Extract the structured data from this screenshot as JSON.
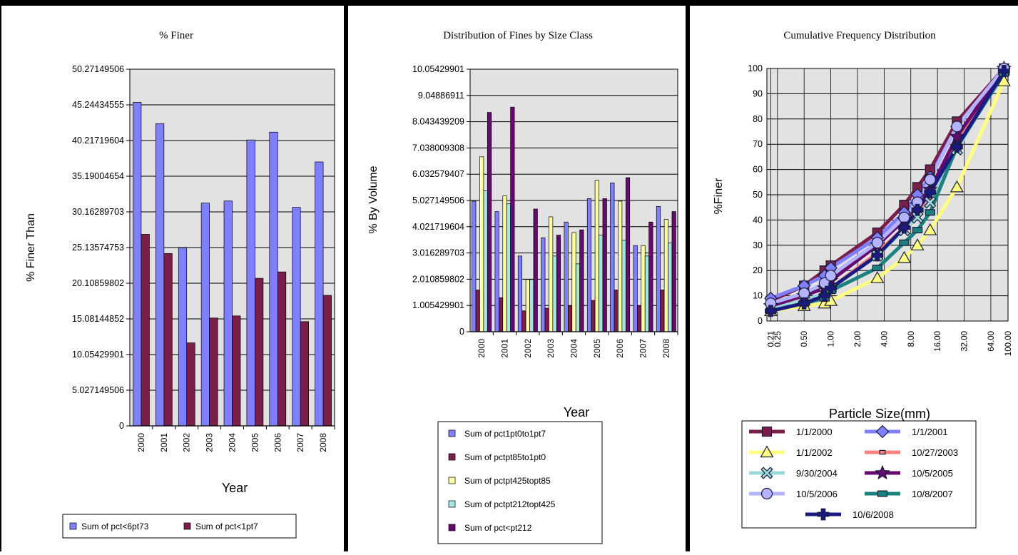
{
  "colors": {
    "blue": "#8080ff",
    "maroon": "#7a1f4a",
    "lightyellow": "#ffffa6",
    "lightcyan": "#a6e6e0",
    "purple": "#650a6e",
    "plotbg": "#e2e2e2"
  },
  "chart_data": [
    {
      "type": "bar",
      "title": "% Finer",
      "xlabel": "Year",
      "ylabel": "% Finer Than",
      "categories": [
        "2000",
        "2001",
        "2002",
        "2003",
        "2004",
        "2005",
        "2006",
        "2007",
        "2008"
      ],
      "ylim": [
        0,
        50.27149506
      ],
      "yticks": [
        "0",
        "5.027149506",
        "10.05429901",
        "15.08144852",
        "20.10859802",
        "25.13574753",
        "30.16289703",
        "35.19004654",
        "40.21719604",
        "45.24434555",
        "50.27149506"
      ],
      "series": [
        {
          "name": "Sum of pct<6pt73",
          "color": "#8080ff",
          "values": [
            45.6,
            42.6,
            25.1,
            31.4,
            31.7,
            40.3,
            41.4,
            30.8,
            37.2
          ]
        },
        {
          "name": "Sum of pct<1pt7",
          "color": "#7a1f4a",
          "values": [
            27.0,
            24.3,
            11.7,
            15.2,
            15.5,
            20.8,
            21.7,
            14.7,
            18.4
          ]
        }
      ],
      "legend": "bottom",
      "grid": true
    },
    {
      "type": "bar",
      "title": "Distribution of Fines by Size Class",
      "xlabel": "Year",
      "ylabel": "% By Volume",
      "categories": [
        "2000",
        "2001",
        "2002",
        "2003",
        "2004",
        "2005",
        "2006",
        "2007",
        "2008"
      ],
      "ylim": [
        0,
        10.05429901
      ],
      "yticks": [
        "0",
        "1.005429901",
        "2.010859802",
        "3.016289703",
        "4.021719604",
        "5.027149506",
        "6.032579407",
        "7.038009308",
        "8.043439209",
        "9.04886911",
        "10.05429901"
      ],
      "series": [
        {
          "name": "Sum of pct1pt0to1pt7",
          "color": "#8080ff",
          "values": [
            5.0,
            4.6,
            2.9,
            3.6,
            4.2,
            5.1,
            5.7,
            3.3,
            4.8
          ]
        },
        {
          "name": "Sum of pctpt85to1pt0",
          "color": "#7a1f4a",
          "values": [
            1.6,
            1.3,
            0.8,
            0.9,
            1.0,
            1.2,
            1.6,
            1.0,
            1.6
          ]
        },
        {
          "name": "Sum of pctpt425topt85",
          "color": "#ffffa6",
          "values": [
            6.7,
            5.2,
            2.0,
            4.4,
            3.8,
            5.8,
            5.0,
            3.3,
            4.3
          ]
        },
        {
          "name": "Sum of pctpt212topt425",
          "color": "#a6e6e0",
          "values": [
            5.4,
            4.9,
            2.0,
            2.9,
            2.6,
            3.7,
            3.5,
            2.9,
            3.4
          ]
        },
        {
          "name": "Sum of pct<pt212",
          "color": "#650a6e",
          "values": [
            8.4,
            8.6,
            4.7,
            3.7,
            3.9,
            5.1,
            5.9,
            4.2,
            4.6
          ]
        }
      ],
      "legend": "bottom",
      "grid": true
    },
    {
      "type": "line",
      "title": "Cumulative Frequency Distribution",
      "xlabel": "Particle Size(mm)",
      "ylabel": "%Finer",
      "xscale": "log",
      "xticks": [
        "0.21",
        "0.25",
        "0.50",
        "1.00",
        "2.00",
        "4.00",
        "8.00",
        "16.00",
        "32.00",
        "64.00",
        "100.00"
      ],
      "x": [
        0.21,
        0.5,
        0.85,
        1.0,
        3.35,
        6.73,
        9.5,
        13.2,
        26.5,
        90.0
      ],
      "ylim": [
        0,
        100
      ],
      "yticks": [
        "0",
        "10",
        "20",
        "30",
        "40",
        "50",
        "60",
        "70",
        "80",
        "90",
        "100"
      ],
      "series": [
        {
          "name": "1/1/2000",
          "color": "#7a1f4a",
          "marker": "square",
          "values": [
            8,
            14,
            20,
            22,
            35,
            46,
            53,
            60,
            79,
            100
          ]
        },
        {
          "name": "1/1/2001",
          "color": "#8080ff",
          "marker": "diamond",
          "values": [
            9,
            14,
            18,
            21,
            33,
            43,
            50,
            57,
            77,
            100
          ]
        },
        {
          "name": "1/1/2002",
          "color": "#ffff80",
          "marker": "triangle",
          "values": [
            4,
            6,
            7,
            8,
            17,
            25,
            30,
            36,
            53,
            95
          ]
        },
        {
          "name": "10/27/2003",
          "color": "#ff8080",
          "marker": "small-square",
          "values": [
            5,
            8,
            10,
            13,
            27,
            37,
            42,
            48,
            70,
            100
          ]
        },
        {
          "name": "9/30/2004",
          "color": "#9ad9d9",
          "marker": "x",
          "values": [
            5,
            8,
            11,
            13,
            26,
            36,
            41,
            47,
            68,
            99
          ]
        },
        {
          "name": "10/5/2005",
          "color": "#650a6e",
          "marker": "star",
          "values": [
            6,
            10,
            13,
            16,
            30,
            40,
            46,
            52,
            73,
            100
          ]
        },
        {
          "name": "10/5/2006",
          "color": "#b3b3ff",
          "marker": "circle",
          "values": [
            7,
            11,
            15,
            18,
            31,
            41,
            47,
            56,
            77,
            100
          ]
        },
        {
          "name": "10/8/2007",
          "color": "#1a8080",
          "marker": "rect",
          "values": [
            4,
            7,
            9,
            12,
            21,
            31,
            36,
            43,
            69,
            98
          ]
        },
        {
          "name": "10/6/2008",
          "color": "#1a1a80",
          "marker": "plus",
          "values": [
            4,
            7,
            10,
            13,
            26,
            37,
            44,
            51,
            69,
            99
          ]
        }
      ],
      "legend": "bottom",
      "grid": true
    }
  ]
}
